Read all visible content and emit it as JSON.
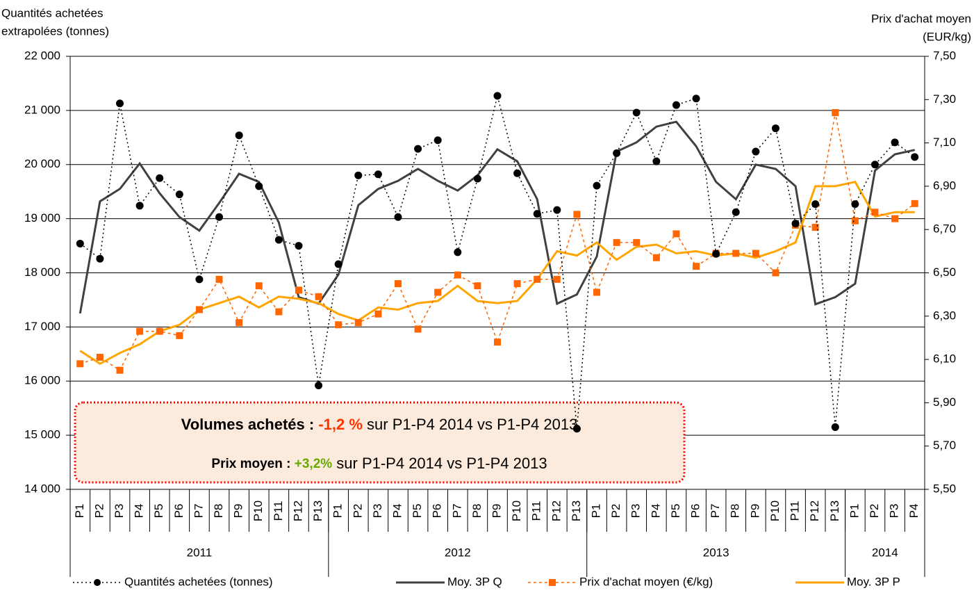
{
  "chart_data": {
    "type": "line",
    "y_label": [
      "Quantités achetées",
      "extrapolées (tonnes)"
    ],
    "y2_label": [
      "Prix d'achat moyen",
      "(EUR/kg)"
    ],
    "year_groups": [
      {
        "label": "2011",
        "periods": [
          "P1",
          "P2",
          "P3",
          "P4",
          "P5",
          "P6",
          "P7",
          "P8",
          "P9",
          "P10",
          "P11",
          "P12",
          "P13"
        ]
      },
      {
        "label": "2012",
        "periods": [
          "P1",
          "P2",
          "P3",
          "P4",
          "P5",
          "P6",
          "P7",
          "P8",
          "P9",
          "P10",
          "P11",
          "P12",
          "P13"
        ]
      },
      {
        "label": "2013",
        "periods": [
          "P1",
          "P2",
          "P3",
          "P4",
          "P5",
          "P6",
          "P7",
          "P8",
          "P9",
          "P10",
          "P11",
          "P12",
          "P13"
        ]
      },
      {
        "label": "2014",
        "periods": [
          "P1",
          "P2",
          "P3",
          "P4"
        ]
      }
    ],
    "ylim": [
      14000,
      22000
    ],
    "yticks": [
      {
        "value": 14000,
        "label": "14 000"
      },
      {
        "value": 15000,
        "label": "15 000"
      },
      {
        "value": 16000,
        "label": "16 000"
      },
      {
        "value": 17000,
        "label": "17 000"
      },
      {
        "value": 18000,
        "label": "18 000"
      },
      {
        "value": 19000,
        "label": "19 000"
      },
      {
        "value": 20000,
        "label": "20 000"
      },
      {
        "value": 21000,
        "label": "21 000"
      },
      {
        "value": 22000,
        "label": "22 000"
      }
    ],
    "y2lim": [
      5.5,
      7.5
    ],
    "y2ticks": [
      {
        "value": 5.5,
        "label": "5,50"
      },
      {
        "value": 5.7,
        "label": "5,70"
      },
      {
        "value": 5.9,
        "label": "5,90"
      },
      {
        "value": 6.1,
        "label": "6,10"
      },
      {
        "value": 6.3,
        "label": "6,30"
      },
      {
        "value": 6.5,
        "label": "6,50"
      },
      {
        "value": 6.7,
        "label": "6,70"
      },
      {
        "value": 6.9,
        "label": "6,90"
      },
      {
        "value": 7.1,
        "label": "7,10"
      },
      {
        "value": 7.3,
        "label": "7,30"
      },
      {
        "value": 7.5,
        "label": "7,50"
      }
    ],
    "grid": true,
    "series": [
      {
        "name": "Quantités achetées (tonnes)",
        "color": "#000000",
        "dash": "dotted",
        "marker": "circle",
        "axis": "y",
        "values": [
          18540,
          18260,
          21130,
          19240,
          19750,
          19450,
          17880,
          19030,
          20540,
          19600,
          18610,
          18500,
          15920,
          18160,
          19800,
          19820,
          19030,
          20290,
          20450,
          18380,
          19740,
          21270,
          19840,
          19090,
          19160,
          15120,
          19610,
          20210,
          20960,
          20060,
          21100,
          21220,
          18350,
          19120,
          20240,
          20670,
          18910,
          19270,
          15150,
          19270,
          20000,
          20410,
          20140
        ]
      },
      {
        "name": "Moy. 3P Q",
        "color": "#404040",
        "dash": "solid",
        "marker": "none",
        "axis": "y",
        "values": [
          17250,
          19320,
          19550,
          20020,
          19470,
          19030,
          18780,
          19290,
          19830,
          19680,
          18930,
          17550,
          17430,
          17970,
          19250,
          19550,
          19700,
          19920,
          19700,
          19520,
          19800,
          20280,
          20060,
          19360,
          17430,
          17600,
          18300,
          20240,
          20410,
          20700,
          20790,
          20340,
          19680,
          19360,
          20000,
          19920,
          19600,
          17420,
          17550,
          17800,
          19890,
          20190,
          20270
        ]
      },
      {
        "name": "Prix d'achat moyen (€/kg)",
        "color": "#ff6600",
        "dash": "dashed",
        "marker": "square",
        "axis": "y2",
        "values": [
          6.08,
          6.11,
          6.05,
          6.23,
          6.23,
          6.21,
          6.33,
          6.47,
          6.27,
          6.44,
          6.32,
          6.42,
          6.39,
          6.26,
          6.27,
          6.31,
          6.45,
          6.24,
          6.41,
          6.49,
          6.44,
          6.18,
          6.45,
          6.47,
          6.47,
          6.77,
          6.41,
          6.64,
          6.64,
          6.57,
          6.68,
          6.53,
          6.59,
          6.59,
          6.59,
          6.5,
          6.72,
          6.71,
          7.24,
          6.74,
          6.78,
          6.75,
          6.82
        ]
      },
      {
        "name": "Moy. 3P P",
        "color": "#ffa500",
        "dash": "solid",
        "marker": "none",
        "axis": "y2",
        "values": [
          6.14,
          6.08,
          6.13,
          6.17,
          6.23,
          6.26,
          6.33,
          6.36,
          6.39,
          6.34,
          6.39,
          6.38,
          6.36,
          6.31,
          6.28,
          6.34,
          6.33,
          6.36,
          6.37,
          6.44,
          6.37,
          6.36,
          6.37,
          6.47,
          6.6,
          6.58,
          6.64,
          6.56,
          6.62,
          6.63,
          6.59,
          6.6,
          6.58,
          6.59,
          6.57,
          6.6,
          6.64,
          6.9,
          6.9,
          6.92,
          6.76,
          6.78,
          6.78
        ]
      }
    ],
    "annotations": [
      {
        "parts": [
          {
            "text": "Volumes achetés : ",
            "style": "bold"
          },
          {
            "text": "-1,2 %",
            "style": "red"
          },
          {
            "text": " sur P1-P4 2014 vs P1-P4 2013",
            "style": "normal"
          }
        ]
      },
      {
        "parts": [
          {
            "text": "Prix moyen : ",
            "style": "bold"
          },
          {
            "text": "+3,2%",
            "style": "green"
          },
          {
            "text": " sur P1-P4 2014 vs P1-P4 2013",
            "style": "normal"
          }
        ]
      }
    ]
  }
}
